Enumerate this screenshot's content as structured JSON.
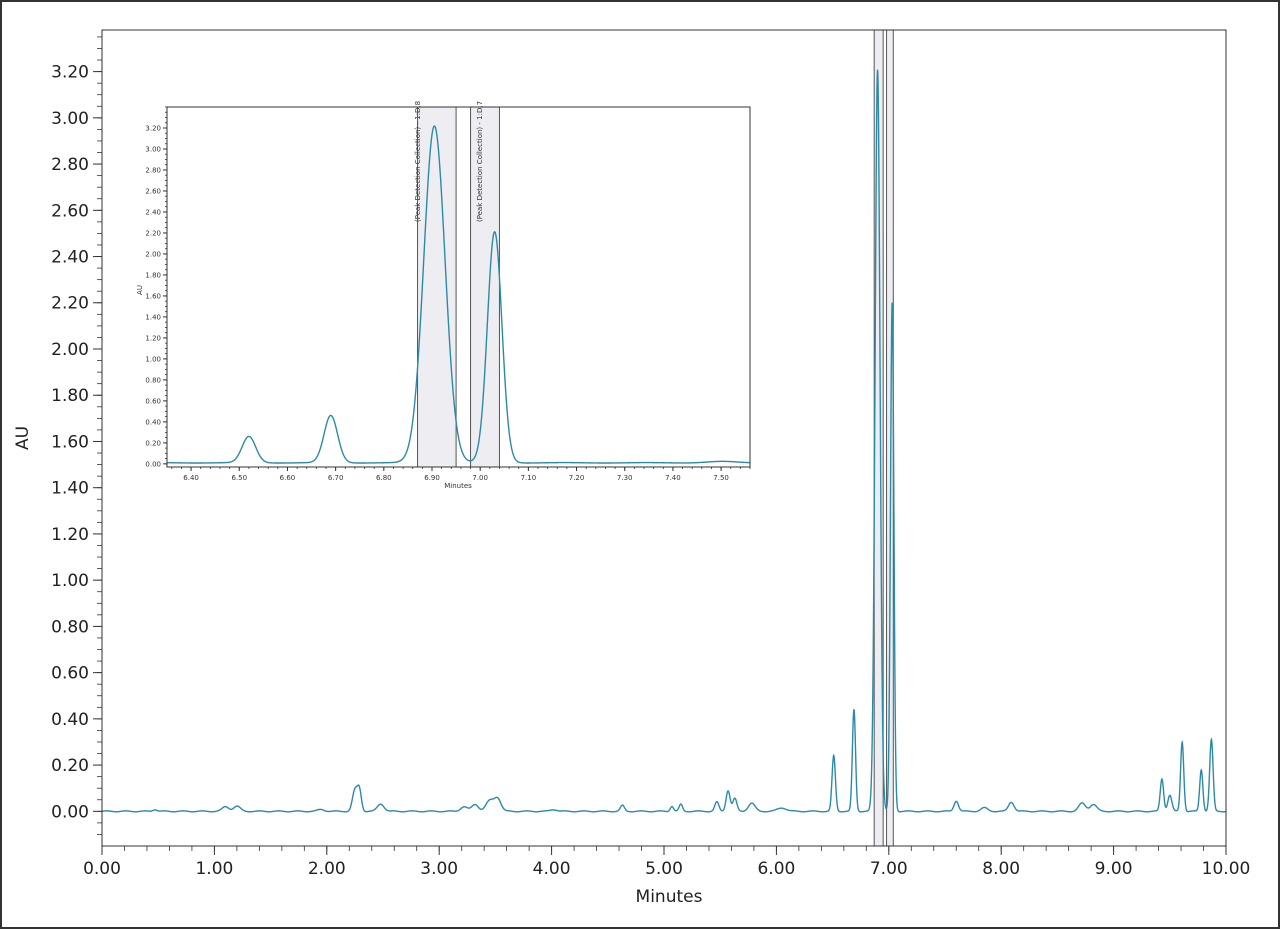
{
  "colors": {
    "trace": "#2b8aa8",
    "frame": "#333333",
    "window_fill": "#eeeef2",
    "window_stroke": "#555555"
  },
  "chart_data": [
    {
      "type": "line",
      "title": "",
      "xlabel": "Minutes",
      "ylabel": "AU",
      "xlim": [
        0,
        10
      ],
      "ylim": [
        -0.15,
        3.38
      ],
      "grid": false,
      "x_ticks": [
        "0.00",
        "1.00",
        "2.00",
        "3.00",
        "4.00",
        "5.00",
        "6.00",
        "7.00",
        "8.00",
        "9.00",
        "10.00"
      ],
      "y_ticks": [
        "0.00",
        "0.20",
        "0.40",
        "0.60",
        "0.80",
        "1.00",
        "1.20",
        "1.40",
        "1.60",
        "1.80",
        "2.00",
        "2.20",
        "2.40",
        "2.60",
        "2.80",
        "3.00",
        "3.20"
      ],
      "collection_windows": [
        [
          6.87,
          6.95
        ],
        [
          6.98,
          7.04
        ]
      ],
      "baseline": 0.0,
      "peaks": [
        {
          "x": 0.47,
          "h": 0.008,
          "w": 0.02
        },
        {
          "x": 1.1,
          "h": 0.02,
          "w": 0.03
        },
        {
          "x": 1.2,
          "h": 0.022,
          "w": 0.03
        },
        {
          "x": 1.95,
          "h": 0.008,
          "w": 0.03
        },
        {
          "x": 2.25,
          "h": 0.09,
          "w": 0.022
        },
        {
          "x": 2.29,
          "h": 0.09,
          "w": 0.018
        },
        {
          "x": 2.48,
          "h": 0.032,
          "w": 0.03
        },
        {
          "x": 3.22,
          "h": 0.02,
          "w": 0.03
        },
        {
          "x": 3.32,
          "h": 0.03,
          "w": 0.03
        },
        {
          "x": 3.45,
          "h": 0.045,
          "w": 0.035
        },
        {
          "x": 3.52,
          "h": 0.055,
          "w": 0.03
        },
        {
          "x": 4.02,
          "h": 0.008,
          "w": 0.03
        },
        {
          "x": 4.63,
          "h": 0.025,
          "w": 0.018
        },
        {
          "x": 5.07,
          "h": 0.022,
          "w": 0.015
        },
        {
          "x": 5.15,
          "h": 0.03,
          "w": 0.015
        },
        {
          "x": 5.47,
          "h": 0.04,
          "w": 0.018
        },
        {
          "x": 5.57,
          "h": 0.09,
          "w": 0.018
        },
        {
          "x": 5.63,
          "h": 0.055,
          "w": 0.018
        },
        {
          "x": 5.78,
          "h": 0.035,
          "w": 0.03
        },
        {
          "x": 6.05,
          "h": 0.015,
          "w": 0.04
        },
        {
          "x": 6.51,
          "h": 0.24,
          "w": 0.015
        },
        {
          "x": 6.69,
          "h": 0.44,
          "w": 0.014
        },
        {
          "x": 6.9,
          "h": 3.21,
          "w": 0.022
        },
        {
          "x": 7.03,
          "h": 2.2,
          "w": 0.015
        },
        {
          "x": 7.6,
          "h": 0.045,
          "w": 0.02
        },
        {
          "x": 7.85,
          "h": 0.015,
          "w": 0.03
        },
        {
          "x": 8.09,
          "h": 0.04,
          "w": 0.025
        },
        {
          "x": 8.72,
          "h": 0.035,
          "w": 0.03
        },
        {
          "x": 8.82,
          "h": 0.03,
          "w": 0.03
        },
        {
          "x": 9.43,
          "h": 0.14,
          "w": 0.015
        },
        {
          "x": 9.5,
          "h": 0.07,
          "w": 0.018
        },
        {
          "x": 9.61,
          "h": 0.3,
          "w": 0.014
        },
        {
          "x": 9.78,
          "h": 0.18,
          "w": 0.014
        },
        {
          "x": 9.87,
          "h": 0.31,
          "w": 0.015
        }
      ]
    },
    {
      "type": "line",
      "title": "",
      "xlabel": "Minutes",
      "ylabel": "AU",
      "xlim": [
        6.35,
        7.56
      ],
      "ylim": [
        -0.03,
        3.4
      ],
      "grid": false,
      "x_ticks": [
        "6.40",
        "6.50",
        "6.60",
        "6.70",
        "6.80",
        "6.90",
        "7.00",
        "7.10",
        "7.20",
        "7.30",
        "7.40",
        "7.50"
      ],
      "y_ticks": [
        "0.00",
        "0.20",
        "0.40",
        "0.60",
        "0.80",
        "1.00",
        "1.20",
        "1.40",
        "1.60",
        "1.80",
        "2.00",
        "2.20",
        "2.40",
        "2.60",
        "2.80",
        "3.00",
        "3.20"
      ],
      "collection_windows": [
        [
          6.87,
          6.95
        ],
        [
          6.98,
          7.04
        ]
      ],
      "window_labels": [
        "(Peak Detection Collection) - 1:D,8",
        "(Peak Detection Collection) - 1:D,7"
      ],
      "baseline": 0.01,
      "peaks": [
        {
          "x": 6.52,
          "h": 0.25,
          "w": 0.014
        },
        {
          "x": 6.69,
          "h": 0.45,
          "w": 0.014
        },
        {
          "x": 6.905,
          "h": 3.21,
          "w": 0.022
        },
        {
          "x": 7.03,
          "h": 2.2,
          "w": 0.015
        },
        {
          "x": 7.5,
          "h": 0.012,
          "w": 0.03
        }
      ]
    }
  ]
}
